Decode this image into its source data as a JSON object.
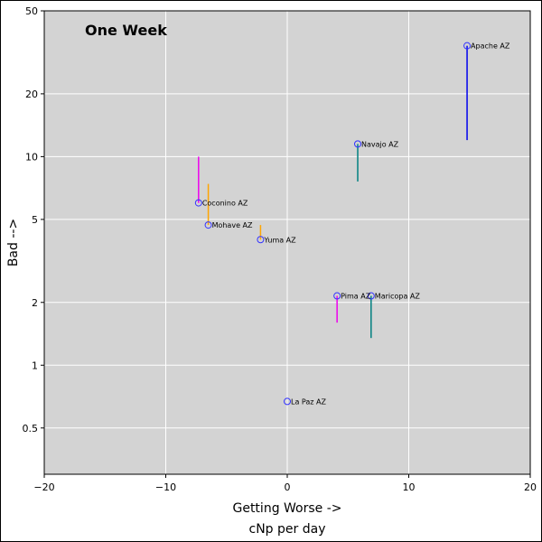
{
  "chart_data": {
    "type": "scatter",
    "title": "One Week",
    "xlabel": "Getting Worse ->",
    "xlabel2": "cNp per day",
    "ylabel": "Bad -->",
    "x_scale": "linear",
    "y_scale": "log",
    "xlim": [
      -20,
      20
    ],
    "ylim": [
      0.3,
      50
    ],
    "x_ticks": [
      -20,
      -10,
      0,
      10,
      20
    ],
    "x_tick_labels": [
      "−20",
      "−10",
      "0",
      "10",
      "20"
    ],
    "y_ticks": [
      0.5,
      1,
      2,
      5,
      10,
      20,
      50
    ],
    "y_tick_labels": [
      "0.5",
      "1",
      "2",
      "5",
      "10",
      "20",
      "50"
    ],
    "grid": true,
    "marker_color": "#3333ff",
    "background": "#d3d3d3",
    "points": [
      {
        "label": "Apache AZ",
        "x": 14.8,
        "y": 34,
        "tail_end": 12,
        "tail_color": "#0000ee"
      },
      {
        "label": "Navajo AZ",
        "x": 5.8,
        "y": 11.5,
        "tail_end": 7.6,
        "tail_color": "#008080"
      },
      {
        "label": "Coconino AZ",
        "x": -7.3,
        "y": 6.0,
        "tail_end": 10,
        "tail_color": "#ee00ee"
      },
      {
        "label": "Mohave AZ",
        "x": -6.5,
        "y": 4.7,
        "tail_end": 7.4,
        "tail_color": "#ffa500"
      },
      {
        "label": "Yuma AZ",
        "x": -2.2,
        "y": 4.0,
        "tail_end": 4.7,
        "tail_color": "#ffa500"
      },
      {
        "label": "Pima AZ",
        "x": 4.1,
        "y": 2.15,
        "tail_end": 1.6,
        "tail_color": "#ee00ee"
      },
      {
        "label": "Maricopa AZ",
        "x": 6.9,
        "y": 2.15,
        "tail_end": 1.35,
        "tail_color": "#008080"
      },
      {
        "label": "La Paz AZ",
        "x": 0.0,
        "y": 0.67,
        "tail_end": null,
        "tail_color": null
      }
    ]
  }
}
